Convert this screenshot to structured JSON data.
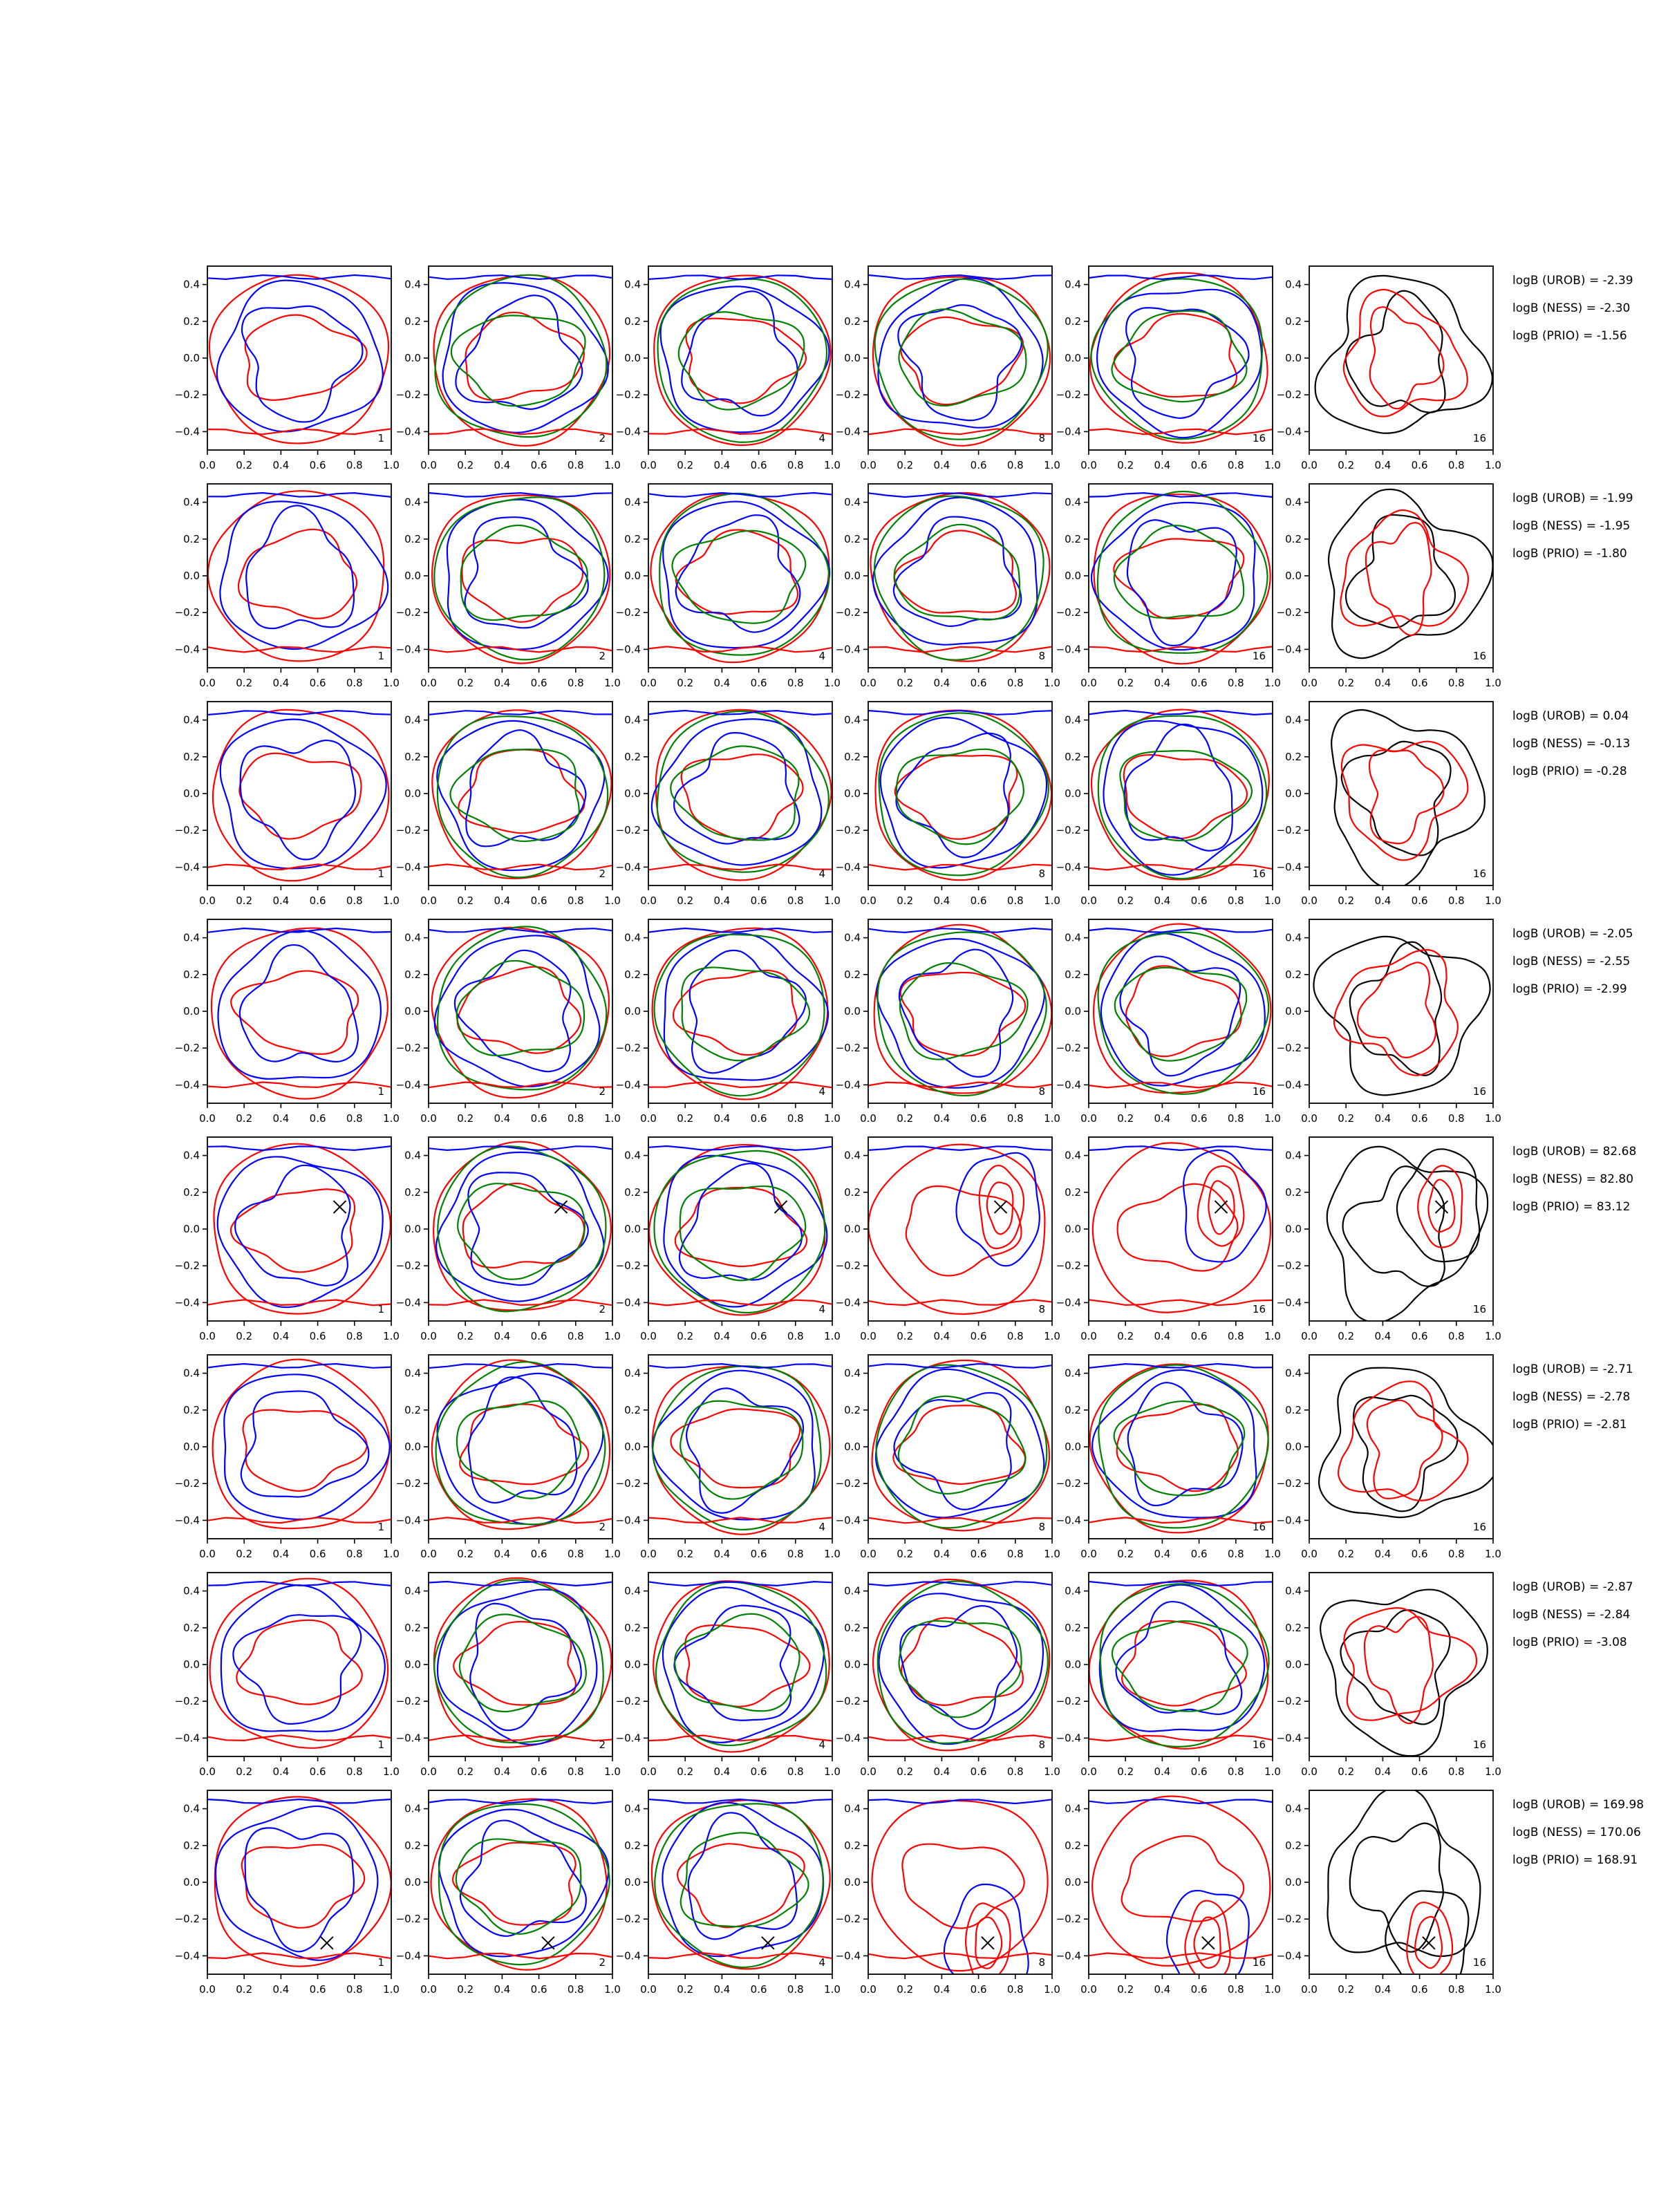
{
  "axis": {
    "xticks": [
      "0.0",
      "0.2",
      "0.4",
      "0.6",
      "0.8",
      "1.0"
    ],
    "yticks": [
      "0.4",
      "0.2",
      "0.0",
      "−0.2",
      "−0.4"
    ],
    "xlim": [
      0.0,
      1.0
    ],
    "ylim": [
      -0.5,
      0.5
    ]
  },
  "column_labels": [
    "1",
    "2",
    "4",
    "8",
    "16",
    "16"
  ],
  "colors": {
    "c1": "#ff0000",
    "c2": "#0000ff",
    "c3": "#008000",
    "c4": "#000000"
  },
  "chart_data": {
    "type": "contour-grid",
    "rows": [
      {
        "marker": null,
        "annotations": [
          "logB (UROB) = -2.39",
          "logB (NESS) = -2.30",
          "logB (PRIO) = -1.56"
        ]
      },
      {
        "marker": null,
        "annotations": [
          "logB (UROB) = -1.99",
          "logB (NESS) = -1.95",
          "logB (PRIO) = -1.80"
        ]
      },
      {
        "marker": null,
        "annotations": [
          "logB (UROB) = 0.04",
          "logB (NESS) = -0.13",
          "logB (PRIO) = -0.28"
        ]
      },
      {
        "marker": null,
        "annotations": [
          "logB (UROB) = -2.05",
          "logB (NESS) = -2.55",
          "logB (PRIO) = -2.99"
        ]
      },
      {
        "marker": [
          0.72,
          0.12
        ],
        "annotations": [
          "logB (UROB) = 82.68",
          "logB (NESS) = 82.80",
          "logB (PRIO) = 83.12"
        ]
      },
      {
        "marker": null,
        "annotations": [
          "logB (UROB) = -2.71",
          "logB (NESS) = -2.78",
          "logB (PRIO) = -2.81"
        ]
      },
      {
        "marker": null,
        "annotations": [
          "logB (UROB) = -2.87",
          "logB (NESS) = -2.84",
          "logB (PRIO) = -3.08"
        ]
      },
      {
        "marker": [
          0.65,
          -0.33
        ],
        "annotations": [
          "logB (UROB) = 169.98",
          "logB (NESS) = 170.06",
          "logB (PRIO) = 168.91"
        ]
      }
    ]
  }
}
